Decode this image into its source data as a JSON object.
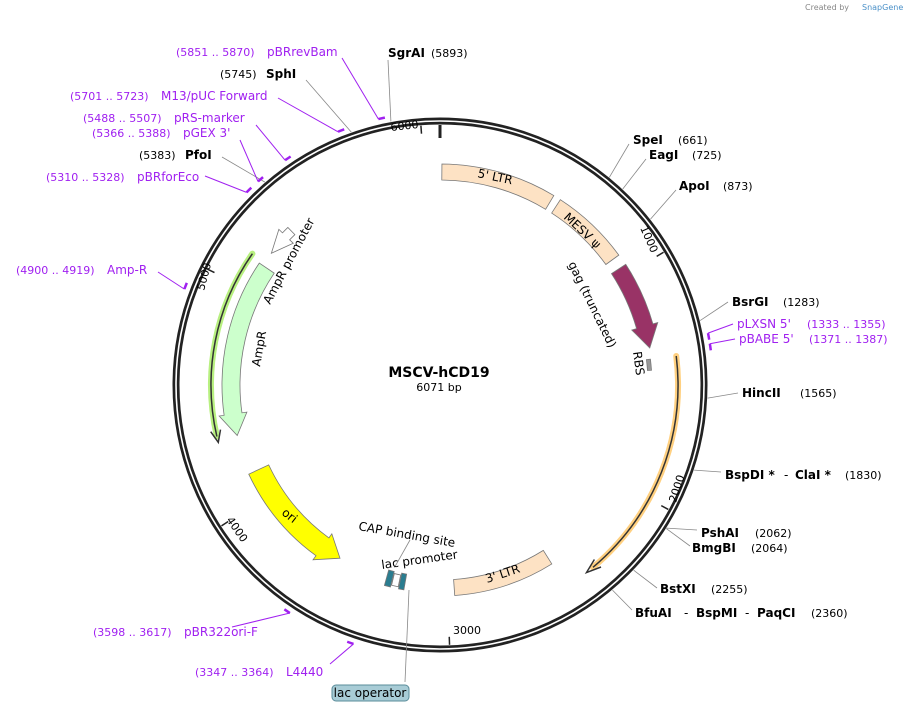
{
  "credit": {
    "created_by": "Created by",
    "brand": "SnapGene"
  },
  "plasmid": {
    "name": "MSCV-hCD19",
    "length": 6071,
    "length_label": "6071 bp"
  },
  "ticks": [
    "1000",
    "2000",
    "3000",
    "4000",
    "5000",
    "6000"
  ],
  "enzymes": [
    {
      "name": "SgrAI",
      "pos": 5893,
      "pos_label": "(5893)"
    },
    {
      "name": "SphI",
      "pos": 5745,
      "pos_label": "(5745)"
    },
    {
      "name": "PfoI",
      "pos": 5383,
      "pos_label": "(5383)"
    },
    {
      "name": "SpeI",
      "pos": 661,
      "pos_label": "(661)"
    },
    {
      "name": "EagI",
      "pos": 725,
      "pos_label": "(725)"
    },
    {
      "name": "ApoI",
      "pos": 873,
      "pos_label": "(873)"
    },
    {
      "name": "BsrGI",
      "pos": 1283,
      "pos_label": "(1283)"
    },
    {
      "name": "HincII",
      "pos": 1565,
      "pos_label": "(1565)"
    },
    {
      "names": [
        "BspDI *",
        "ClaI *"
      ],
      "pos": 1830,
      "pos_label": "(1830)"
    },
    {
      "name": "PshAI",
      "pos": 2062,
      "pos_label": "(2062)"
    },
    {
      "name": "BmgBI",
      "pos": 2064,
      "pos_label": "(2064)"
    },
    {
      "name": "BstXI",
      "pos": 2255,
      "pos_label": "(2255)"
    },
    {
      "names": [
        "BfuAI",
        "BspMI",
        "PaqCI"
      ],
      "pos": 2360,
      "pos_label": "(2360)"
    }
  ],
  "separator": "-",
  "primers": [
    {
      "name": "pBRrevBam",
      "range": "(5851 .. 5870)",
      "start": 5851
    },
    {
      "name": "M13/pUC Forward",
      "range": "(5701 .. 5723)",
      "start": 5701
    },
    {
      "name": "pRS-marker",
      "range": "(5488 .. 5507)",
      "start": 5488
    },
    {
      "name": "pGEX 3'",
      "range": "(5366 .. 5388)",
      "start": 5366
    },
    {
      "name": "pBRforEco",
      "range": "(5310 .. 5328)",
      "start": 5310
    },
    {
      "name": "Amp-R",
      "range": "(4900 .. 4919)",
      "start": 4900
    },
    {
      "name": "pLXSN 5'",
      "range": "(1333 .. 1355)",
      "start": 1333
    },
    {
      "name": "pBABE 5'",
      "range": "(1371 .. 1387)",
      "start": 1371
    },
    {
      "name": "pBR322ori-F",
      "range": "(3598 .. 3617)",
      "start": 3598
    },
    {
      "name": "L4440",
      "range": "(3347 .. 3364)",
      "start": 3347
    }
  ],
  "features": {
    "ltr5": "5' LTR",
    "mesv": "MESV ψ",
    "gag": "gag (truncated)",
    "rbs": "RBS",
    "ltr3": "3' LTR",
    "lac_promoter": "lac promoter",
    "cap": "CAP binding site",
    "lac_operator": "lac operator",
    "ori": "ori",
    "ampr": "AmpR",
    "ampr_promoter": "AmpR promoter"
  },
  "colors": {
    "ltr": "#fde2c4",
    "gag": "#993366",
    "ori": "#ffff00",
    "ampr": "#ccffcc",
    "primer": "#a020f0",
    "cd19_glow": "#ffd080",
    "ampr_glow": "#b8f080",
    "lac": "#2a7d90",
    "lac_operator_box": "#a8ccd6"
  }
}
